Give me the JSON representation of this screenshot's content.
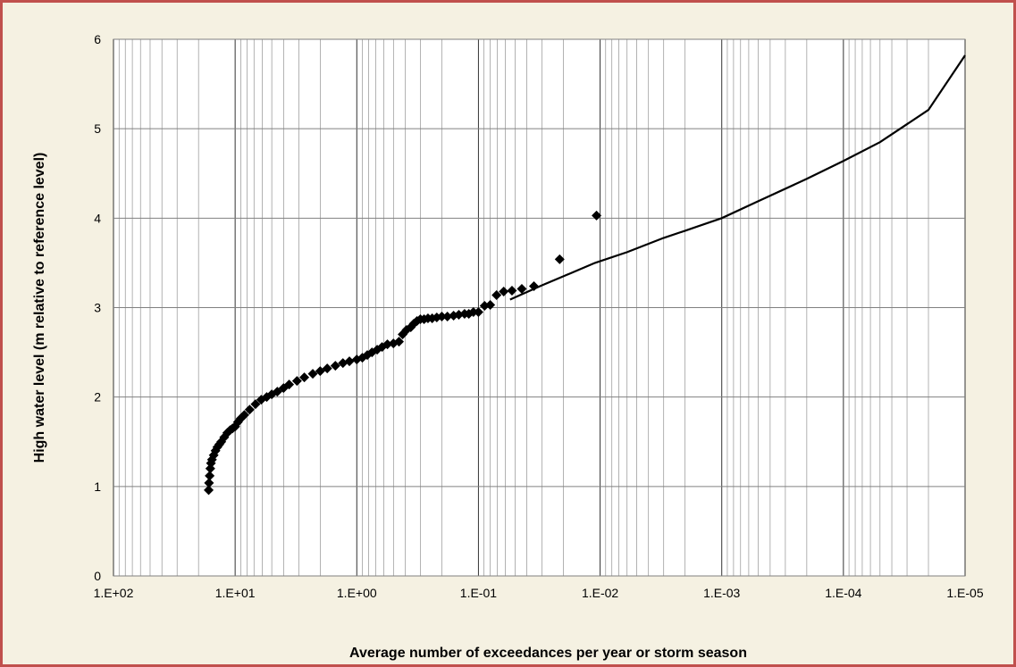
{
  "chart_data": {
    "type": "scatter",
    "title": "",
    "xlabel": "Average number of exceedances per year or storm season",
    "ylabel": "High water level (m relative to reference level)",
    "x_scale": "log",
    "x_reversed": true,
    "xlim": [
      100,
      1e-05
    ],
    "ylim": [
      0,
      6
    ],
    "x_tick_labels": [
      "1.E+02",
      "1.E+01",
      "1.E+00",
      "1.E-01",
      "1.E-02",
      "1.E-03",
      "1.E-04",
      "1.E-05"
    ],
    "y_tick_labels": [
      "0",
      "1",
      "2",
      "3",
      "4",
      "5",
      "6"
    ],
    "grid": true,
    "legend": "none",
    "colors": {
      "frame_border": "#c0504d",
      "background": "#f5f1e2",
      "plot_area": "#ffffff",
      "series": "#000000",
      "grid": "#808080"
    },
    "series": [
      {
        "marker": "diamond",
        "style": "markers",
        "x": [
          16.5,
          16.4,
          16.2,
          16.0,
          15.8,
          15.5,
          15.0,
          14.5,
          14.0,
          13.5,
          13.0,
          12.3,
          11.6,
          11.0,
          10.5,
          10.0,
          9.5,
          9.0,
          8.4,
          7.6,
          6.8,
          6.1,
          5.5,
          5.0,
          4.5,
          4.0,
          3.6,
          3.1,
          2.7,
          2.3,
          2.0,
          1.75,
          1.5,
          1.3,
          1.15,
          1.0,
          0.9,
          0.82,
          0.75,
          0.68,
          0.62,
          0.56,
          0.5,
          0.45,
          0.42,
          0.39,
          0.36,
          0.34,
          0.32,
          0.3,
          0.28,
          0.26,
          0.24,
          0.22,
          0.2,
          0.18,
          0.16,
          0.145,
          0.13,
          0.12,
          0.11,
          0.1,
          0.089,
          0.08,
          0.071,
          0.062,
          0.053,
          0.044,
          0.035,
          0.0215,
          0.0107
        ],
        "y": [
          0.96,
          1.04,
          1.12,
          1.2,
          1.26,
          1.3,
          1.35,
          1.4,
          1.44,
          1.47,
          1.5,
          1.55,
          1.6,
          1.63,
          1.65,
          1.67,
          1.72,
          1.76,
          1.8,
          1.86,
          1.92,
          1.97,
          2.0,
          2.03,
          2.06,
          2.1,
          2.14,
          2.18,
          2.22,
          2.26,
          2.29,
          2.32,
          2.35,
          2.38,
          2.4,
          2.42,
          2.44,
          2.47,
          2.5,
          2.53,
          2.56,
          2.59,
          2.6,
          2.62,
          2.7,
          2.75,
          2.78,
          2.82,
          2.85,
          2.87,
          2.87,
          2.88,
          2.88,
          2.89,
          2.9,
          2.9,
          2.91,
          2.92,
          2.93,
          2.93,
          2.95,
          2.95,
          3.02,
          3.03,
          3.14,
          3.18,
          3.19,
          3.21,
          3.24,
          3.54,
          4.03
        ]
      },
      {
        "style": "line",
        "x": [
          0.055,
          0.03,
          0.02,
          0.011,
          0.006,
          0.003,
          0.002,
          0.001,
          0.0005,
          0.0002,
          0.0001,
          5e-05,
          2e-05,
          1e-05
        ],
        "y": [
          3.09,
          3.25,
          3.35,
          3.5,
          3.62,
          3.78,
          3.86,
          4.0,
          4.19,
          4.44,
          4.64,
          4.85,
          5.21,
          5.82
        ]
      }
    ]
  }
}
